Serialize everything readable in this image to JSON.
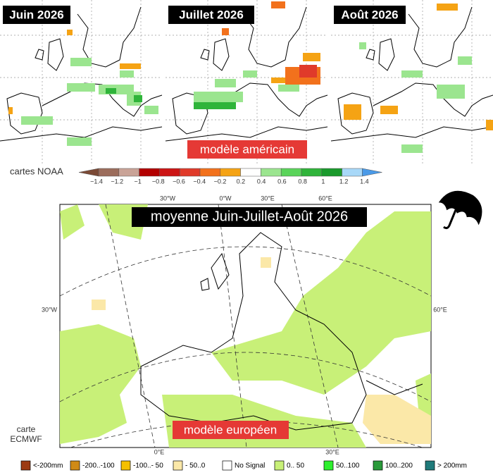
{
  "noaa": {
    "maps": [
      {
        "title": "Juin 2026"
      },
      {
        "title": "Juillet 2026"
      },
      {
        "title": "Août 2026"
      }
    ],
    "model": "modèle américain",
    "source": "cartes NOAA",
    "colorbar": {
      "ticks": [
        "−1.4",
        "−1.2",
        "−1",
        "−0.8",
        "−0.6",
        "−0.4",
        "−0.2",
        "0.2",
        "0.4",
        "0.6",
        "0.8",
        "1",
        "1.2",
        "1.4"
      ],
      "colors": [
        "#7b4a36",
        "#9c6d5c",
        "#c9a397",
        "#b30000",
        "#cc1414",
        "#e03a2a",
        "#f2711c",
        "#f5a314",
        "#ffffff",
        "#9be58f",
        "#5ad45a",
        "#2fb43a",
        "#1a9a2c",
        "#a8d8f8",
        "#4a9ae8"
      ]
    }
  },
  "ecmwf": {
    "title": "moyenne Juin-Juillet-Août 2026",
    "model": "modèle européen",
    "source": "carte ECMWF",
    "axis_labels": {
      "top": [
        "30°W",
        "0°W",
        "30°E",
        "60°E"
      ],
      "left": "30°W",
      "right": "60°E",
      "bottom": [
        "0°E",
        "30°E"
      ]
    },
    "legend": [
      {
        "label": "<-200mm",
        "color": "#9c3a12"
      },
      {
        "label": "-200..-100",
        "color": "#d08a16"
      },
      {
        "label": "-100..- 50",
        "color": "#f5c000"
      },
      {
        "label": "- 50..0",
        "color": "#fbe8a8"
      },
      {
        "label": "No Signal",
        "color": "#ffffff"
      },
      {
        "label": "0.. 50",
        "color": "#c8f078"
      },
      {
        "label": "50..100",
        "color": "#2ef02e"
      },
      {
        "label": "100..200",
        "color": "#2a9a3a"
      },
      {
        "label": "> 200mm",
        "color": "#1f7a7a"
      }
    ]
  }
}
